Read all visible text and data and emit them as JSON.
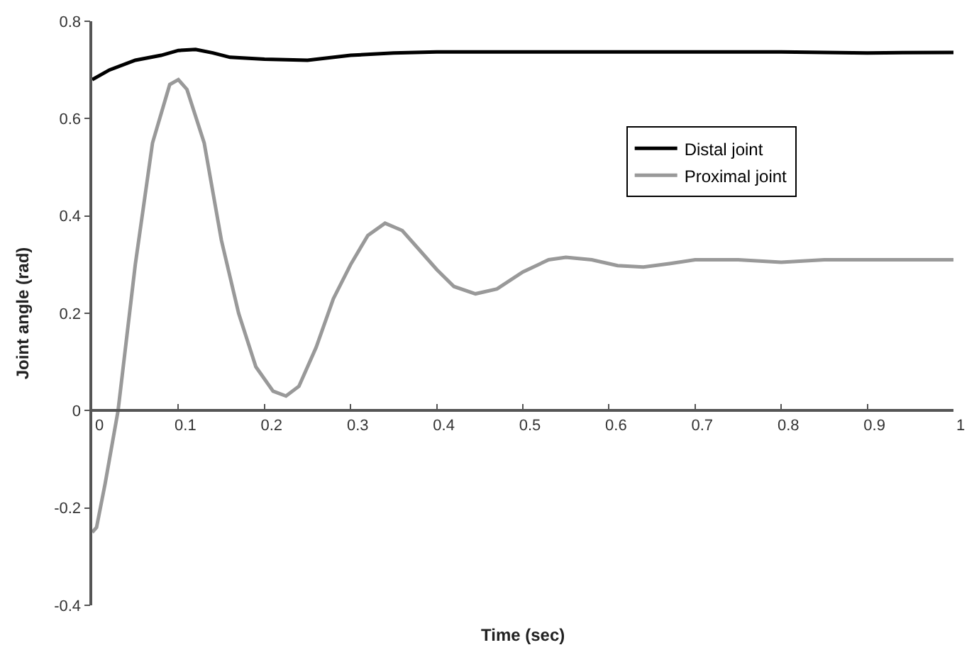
{
  "chart_data": {
    "type": "line",
    "xlabel": "Time (sec)",
    "ylabel": "Joint angle (rad)",
    "xlim": [
      0,
      1
    ],
    "xticks": [
      0,
      0.1,
      0.2,
      0.3,
      0.4,
      0.5,
      0.6,
      0.7,
      0.8,
      0.9,
      1
    ],
    "ylim": [
      -0.4,
      0.8
    ],
    "yticks": [
      -0.4,
      -0.2,
      0,
      0.2,
      0.4,
      0.6,
      0.8
    ],
    "legend": "top right",
    "marker": "none",
    "line_style": "solid",
    "series": [
      {
        "name": "Distal joint",
        "color": "#000000",
        "x": [
          0,
          0.02,
          0.05,
          0.08,
          0.1,
          0.12,
          0.14,
          0.16,
          0.2,
          0.25,
          0.3,
          0.35,
          0.4,
          0.6,
          0.8,
          0.9,
          1
        ],
        "values": [
          0.68,
          0.7,
          0.72,
          0.73,
          0.74,
          0.742,
          0.735,
          0.726,
          0.722,
          0.72,
          0.73,
          0.735,
          0.737,
          0.737,
          0.737,
          0.735,
          0.736
        ]
      },
      {
        "name": "Proximal joint",
        "color": "#999999",
        "x": [
          0,
          0.005,
          0.015,
          0.03,
          0.05,
          0.07,
          0.09,
          0.1,
          0.11,
          0.13,
          0.15,
          0.17,
          0.19,
          0.21,
          0.225,
          0.24,
          0.26,
          0.28,
          0.3,
          0.32,
          0.34,
          0.36,
          0.38,
          0.4,
          0.42,
          0.445,
          0.47,
          0.5,
          0.53,
          0.55,
          0.58,
          0.61,
          0.64,
          0.67,
          0.7,
          0.75,
          0.8,
          0.85,
          0.9,
          1
        ],
        "values": [
          -0.25,
          -0.24,
          -0.15,
          0,
          0.3,
          0.55,
          0.67,
          0.68,
          0.66,
          0.55,
          0.35,
          0.2,
          0.09,
          0.04,
          0.03,
          0.05,
          0.13,
          0.23,
          0.3,
          0.36,
          0.385,
          0.37,
          0.33,
          0.29,
          0.255,
          0.24,
          0.25,
          0.285,
          0.31,
          0.315,
          0.31,
          0.298,
          0.295,
          0.302,
          0.31,
          0.31,
          0.305,
          0.31,
          0.31,
          0.31
        ]
      }
    ]
  }
}
